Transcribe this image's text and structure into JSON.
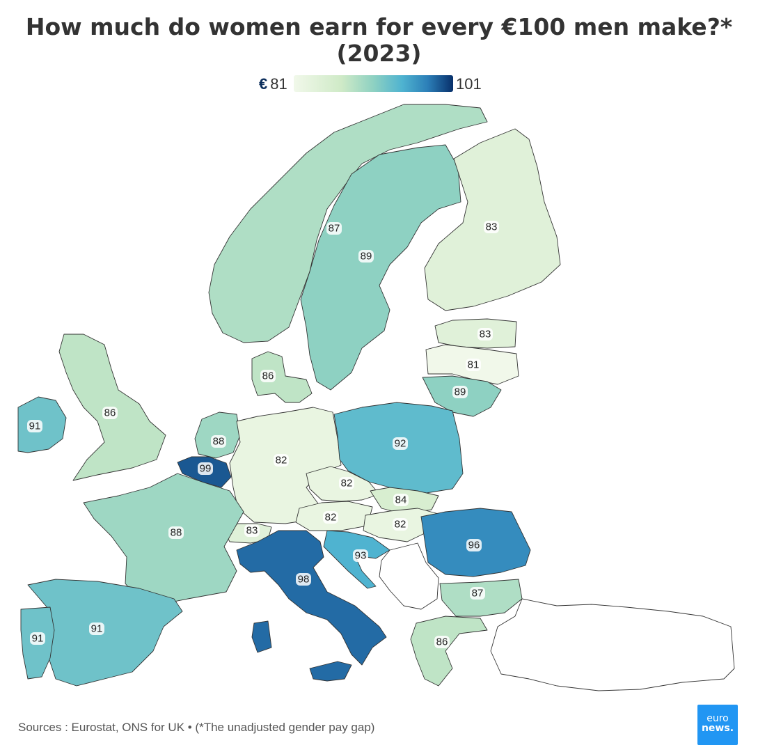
{
  "title": {
    "line1": "How much do women earn for every €100 men make?*",
    "line2": "(2023)"
  },
  "legend": {
    "currency": "€",
    "min": "81",
    "max": "101"
  },
  "colors": {
    "scale": [
      "#f1f8ea",
      "#cfeac7",
      "#8ed1c2",
      "#4fb3d0",
      "#2c7fb8",
      "#08306b"
    ],
    "no_data": "#ffffff",
    "border": "#333333"
  },
  "countries": [
    {
      "name": "Norway",
      "value": 87,
      "label": "87"
    },
    {
      "name": "Sweden",
      "value": 89,
      "label": "89"
    },
    {
      "name": "Finland",
      "value": 83,
      "label": "83"
    },
    {
      "name": "Estonia",
      "value": 83,
      "label": "83"
    },
    {
      "name": "Latvia",
      "value": 81,
      "label": "81"
    },
    {
      "name": "Lithuania",
      "value": 89,
      "label": "89"
    },
    {
      "name": "Denmark",
      "value": 86,
      "label": "86"
    },
    {
      "name": "United Kingdom",
      "value": 86,
      "label": "86"
    },
    {
      "name": "Ireland",
      "value": 91,
      "label": "91"
    },
    {
      "name": "Netherlands",
      "value": 88,
      "label": "88"
    },
    {
      "name": "Belgium",
      "value": 99,
      "label": "99"
    },
    {
      "name": "Germany",
      "value": 82,
      "label": "82"
    },
    {
      "name": "Poland",
      "value": 92,
      "label": "92"
    },
    {
      "name": "Czechia",
      "value": 82,
      "label": "82"
    },
    {
      "name": "Slovakia",
      "value": 84,
      "label": "84"
    },
    {
      "name": "Austria",
      "value": 82,
      "label": "82"
    },
    {
      "name": "Hungary",
      "value": 82,
      "label": "82"
    },
    {
      "name": "Switzerland",
      "value": 83,
      "label": "83"
    },
    {
      "name": "France",
      "value": 88,
      "label": "88"
    },
    {
      "name": "Romania",
      "value": 96,
      "label": "96"
    },
    {
      "name": "Croatia",
      "value": 93,
      "label": "93"
    },
    {
      "name": "Italy",
      "value": 98,
      "label": "98"
    },
    {
      "name": "Bulgaria",
      "value": 87,
      "label": "87"
    },
    {
      "name": "Spain",
      "value": 91,
      "label": "91"
    },
    {
      "name": "Portugal",
      "value": 91,
      "label": "91"
    },
    {
      "name": "Greece",
      "value": 86,
      "label": "86"
    }
  ],
  "footer": "Sources : Eurostat, ONS for UK • (*The unadjusted gender pay gap)",
  "logo": {
    "line1": "euro",
    "line2": "news."
  }
}
